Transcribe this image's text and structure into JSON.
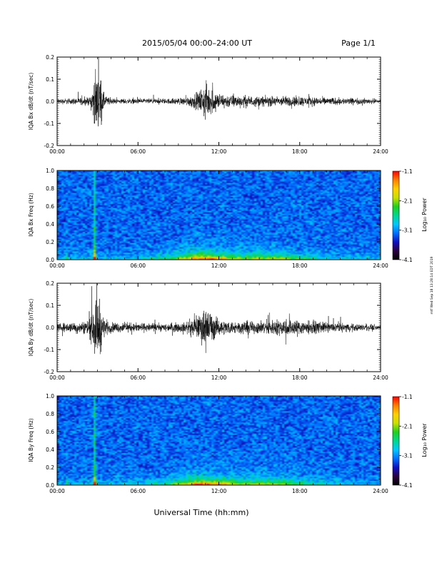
{
  "header": {
    "title": "2015/05/04  00:00–24:00 UT",
    "page": "Page 1/1"
  },
  "footer": {
    "xlabel": "Universal Time (hh:mm)",
    "side_stamp": "mtf Wed Sep 18 13:28:14 EDT 2019"
  },
  "colorbar": {
    "label": "Log₁₀ Power",
    "ticks": [
      "-1.1",
      "-2.1",
      "-3.1",
      "-4.1"
    ],
    "colors": [
      "#000000",
      "#2a0040",
      "#1010c0",
      "#0070ff",
      "#00c8ff",
      "#00d890",
      "#20d020",
      "#c8e000",
      "#ffd000",
      "#ff8000",
      "#ff0000"
    ]
  },
  "chart_data": [
    {
      "type": "line",
      "id": "bx_waveform",
      "ylabel": "IQA Bx dB/dt (nT/sec)",
      "xlim": [
        "00:00",
        "24:00"
      ],
      "x_ticks": [
        "00:00",
        "06:00",
        "12:00",
        "18:00",
        "24:00"
      ],
      "ylim": [
        -0.2,
        0.2
      ],
      "y_ticks": [
        "0.2",
        "0.1",
        "0.0",
        "-0.1",
        "-0.2"
      ],
      "amplitude_envelope": {
        "x_hours": [
          0,
          2.4,
          2.6,
          2.8,
          3.1,
          3.5,
          4,
          8,
          9.5,
          10.5,
          11,
          11.5,
          12,
          13,
          15,
          18,
          20,
          24
        ],
        "amplitude": [
          0.02,
          0.03,
          0.1,
          0.2,
          0.25,
          0.05,
          0.02,
          0.02,
          0.03,
          0.07,
          0.15,
          0.1,
          0.06,
          0.05,
          0.04,
          0.04,
          0.03,
          0.02
        ]
      },
      "color": "#000000"
    },
    {
      "type": "heatmap",
      "id": "bx_spectrogram",
      "ylabel": "IQA Bx Freq (Hz)",
      "xlim": [
        "00:00",
        "24:00"
      ],
      "x_ticks": [
        "00:00",
        "06:00",
        "12:00",
        "18:00",
        "24:00"
      ],
      "ylim": [
        0.0,
        1.0
      ],
      "y_ticks": [
        "1.0",
        "0.8",
        "0.6",
        "0.4",
        "0.2",
        "0.0"
      ],
      "colorbar": "Log10 Power",
      "zlim": [
        -4.1,
        -1.1
      ]
    },
    {
      "type": "line",
      "id": "by_waveform",
      "ylabel": "IQA By dB/dt (nT/sec)",
      "xlim": [
        "00:00",
        "24:00"
      ],
      "x_ticks": [
        "00:00",
        "06:00",
        "12:00",
        "18:00",
        "24:00"
      ],
      "ylim": [
        -0.2,
        0.2
      ],
      "y_ticks": [
        "0.2",
        "0.1",
        "0.0",
        "-0.1",
        "-0.2"
      ],
      "amplitude_envelope": {
        "x_hours": [
          0,
          2,
          2.4,
          2.6,
          2.8,
          3.1,
          3.5,
          4,
          8,
          9.5,
          10.5,
          11,
          11.5,
          12,
          13,
          15,
          17,
          18,
          20,
          24
        ],
        "amplitude": [
          0.03,
          0.05,
          0.08,
          0.15,
          0.22,
          0.25,
          0.07,
          0.04,
          0.03,
          0.04,
          0.09,
          0.17,
          0.11,
          0.06,
          0.05,
          0.05,
          0.07,
          0.06,
          0.04,
          0.02
        ]
      },
      "color": "#000000"
    },
    {
      "type": "heatmap",
      "id": "by_spectrogram",
      "ylabel": "IQA By Freq (Hz)",
      "xlim": [
        "00:00",
        "24:00"
      ],
      "x_ticks": [
        "00:00",
        "06:00",
        "12:00",
        "18:00",
        "24:00"
      ],
      "ylim": [
        0.0,
        1.0
      ],
      "y_ticks": [
        "1.0",
        "0.8",
        "0.6",
        "0.4",
        "0.2",
        "0.0"
      ],
      "colorbar": "Log10 Power",
      "zlim": [
        -4.1,
        -1.1
      ]
    }
  ]
}
